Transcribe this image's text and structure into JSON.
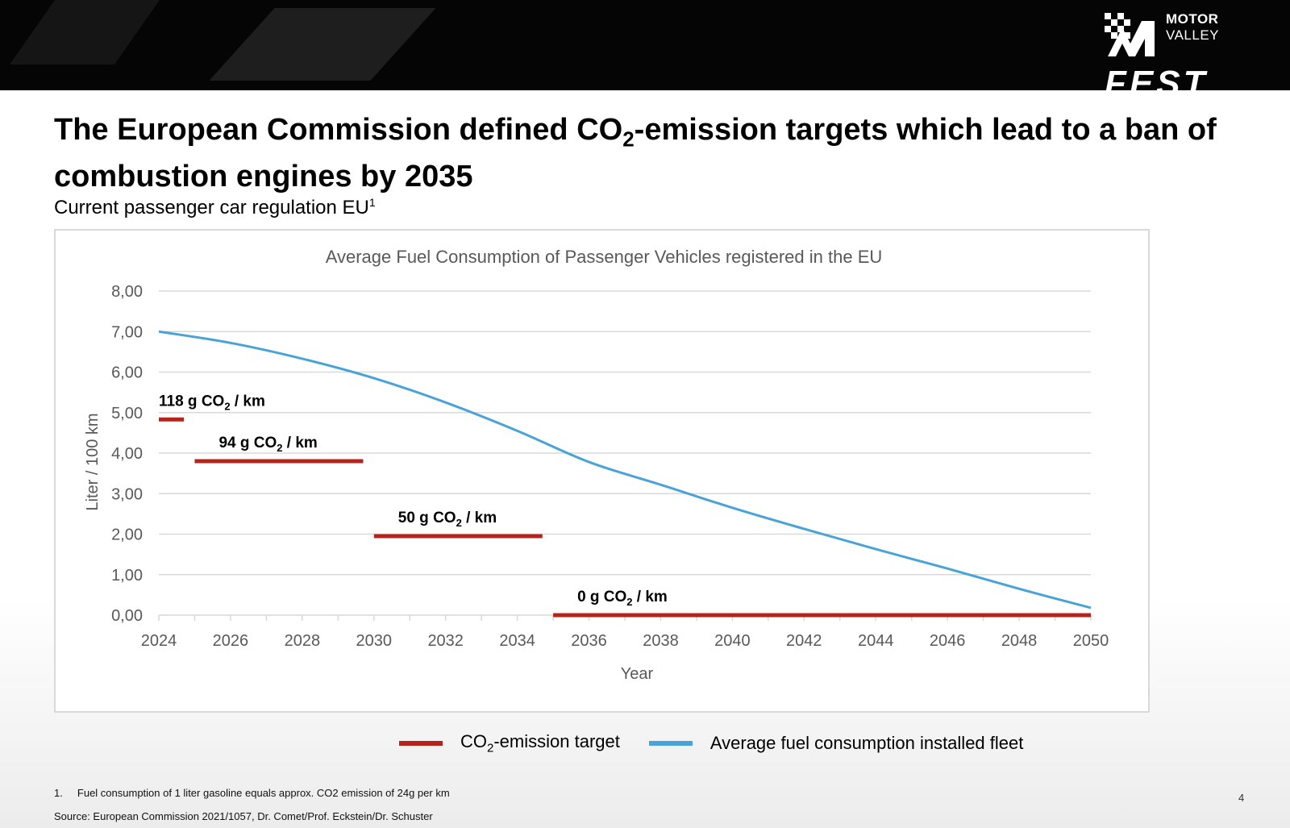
{
  "slide": {
    "title_part1": "The European Commission defined CO",
    "title_sub": "2",
    "title_part2": "-emission targets which lead to a ban of combustion engines by 2035",
    "subtitle": "Current passenger car regulation EU",
    "subtitle_sup": "1",
    "footnote_1": "1.     Fuel consumption of 1 liter gasoline equals approx. CO2 emission of 24g per km",
    "source": "Source: European Commission 2021/1057, Dr. Comet/Prof. Eckstein/Dr. Schuster",
    "page_number": "4"
  },
  "logo": {
    "line1": "MOTOR",
    "line2": "VALLEY",
    "line3": "FEST"
  },
  "legend": {
    "target_label_pre": "CO",
    "target_label_sub": "2",
    "target_label_post": "-emission target",
    "fleet_label": "Average fuel consumption installed fleet"
  },
  "colors": {
    "target": "#b5241c",
    "fleet": "#4aa3d8",
    "grid": "#d9d9d9",
    "axis_text": "#595959"
  },
  "chart_data": {
    "type": "line",
    "title": "Average Fuel Consumption of Passenger Vehicles registered in the EU",
    "xlabel": "Year",
    "ylabel": "Liter / 100 km",
    "xlim": [
      2024,
      2050
    ],
    "ylim": [
      0,
      8
    ],
    "x_ticks": [
      "2024",
      "2026",
      "2028",
      "2030",
      "2032",
      "2034",
      "2036",
      "2038",
      "2040",
      "2042",
      "2044",
      "2046",
      "2048",
      "2050"
    ],
    "y_ticks": [
      "0,00",
      "1,00",
      "2,00",
      "3,00",
      "4,00",
      "5,00",
      "6,00",
      "7,00",
      "8,00"
    ],
    "grid": true,
    "series": [
      {
        "name": "Average fuel consumption installed fleet",
        "x": [
          2024,
          2026,
          2028,
          2030,
          2032,
          2034,
          2036,
          2038,
          2040,
          2042,
          2044,
          2046,
          2048,
          2050
        ],
        "y": [
          7.0,
          6.72,
          6.33,
          5.85,
          5.25,
          4.55,
          3.78,
          3.22,
          2.65,
          2.13,
          1.63,
          1.15,
          0.65,
          0.18
        ]
      }
    ],
    "targets": [
      {
        "label_pre": "118 g CO",
        "label_sub": "2",
        "label_post": " / km",
        "x_start": 2024,
        "x_end": 2024.7,
        "y": 4.83
      },
      {
        "label_pre": "94 g CO",
        "label_sub": "2",
        "label_post": " / km",
        "x_start": 2025,
        "x_end": 2029.7,
        "y": 3.8
      },
      {
        "label_pre": "50 g CO",
        "label_sub": "2",
        "label_post": " / km",
        "x_start": 2030,
        "x_end": 2034.7,
        "y": 1.95
      },
      {
        "label_pre": "0 g CO",
        "label_sub": "2",
        "label_post": " / km",
        "x_start": 2035,
        "x_end": 2050,
        "y": 0
      }
    ]
  }
}
